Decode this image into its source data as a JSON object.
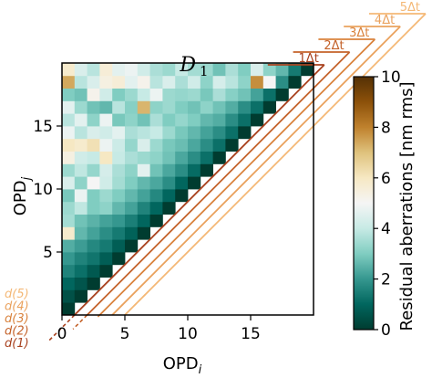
{
  "chart_data": {
    "type": "heatmap",
    "title": "D1",
    "xlabel": "OPDi",
    "ylabel": "OPDj",
    "x_ticks": [
      "0",
      "5",
      "10",
      "15"
    ],
    "y_ticks": [
      "5",
      "10",
      "15"
    ],
    "colorbar": {
      "label": "Residual aberrations [nm rms]",
      "min": 0,
      "max": 10,
      "ticks": [
        "0",
        "2",
        "4",
        "6",
        "8",
        "10"
      ],
      "colormap": [
        "#003c30",
        "#01665e",
        "#35978f",
        "#80cdc1",
        "#c7eae5",
        "#f5f5f5",
        "#f6e8c3",
        "#dfc27d",
        "#bf812d",
        "#8c510a",
        "#543005"
      ]
    },
    "dt_labels": [
      "5Δt",
      "4Δt",
      "3Δt",
      "2Δt",
      "1Δt"
    ],
    "d_labels": [
      "d(5)",
      "d(4)",
      "d(3)",
      "d(2)",
      "d(1)"
    ],
    "line_colors": [
      "#f4b876",
      "#eaa25e",
      "#d9823c",
      "#c4622a",
      "#a8411e"
    ],
    "matrix": [
      [
        0
      ],
      [
        0.5,
        0
      ],
      [
        1.0,
        0.6,
        0
      ],
      [
        1.6,
        1.2,
        0.7,
        0
      ],
      [
        2.0,
        1.6,
        1.3,
        0.8,
        0
      ],
      [
        2.4,
        2.1,
        1.7,
        1.4,
        0.8,
        0
      ],
      [
        5.8,
        2.6,
        2.2,
        1.8,
        1.4,
        0.9,
        0
      ],
      [
        3.5,
        2.8,
        2.5,
        2.2,
        2.0,
        1.5,
        1.0,
        0
      ],
      [
        3.4,
        3.9,
        3.0,
        3.2,
        2.6,
        2.2,
        1.6,
        1.0,
        0
      ],
      [
        2.9,
        4.8,
        3.0,
        3.4,
        3.0,
        2.6,
        2.2,
        1.7,
        1.0,
        0
      ],
      [
        4.4,
        3.2,
        5.0,
        4.2,
        3.5,
        3.0,
        2.6,
        2.3,
        1.8,
        1.0,
        0
      ],
      [
        3.4,
        3.9,
        3.3,
        4.3,
        3.6,
        3.2,
        4.6,
        2.8,
        2.3,
        1.8,
        1.1,
        0
      ],
      [
        5.4,
        4.2,
        4.0,
        6.0,
        4.0,
        3.6,
        3.4,
        3.2,
        2.8,
        2.3,
        1.8,
        1.2,
        0
      ],
      [
        6.0,
        5.8,
        6.2,
        4.8,
        4.1,
        3.3,
        4.4,
        3.4,
        2.9,
        2.7,
        2.3,
        1.8,
        1.2,
        0
      ],
      [
        4.8,
        3.8,
        4.4,
        4.2,
        4.6,
        3.6,
        3.8,
        4.0,
        3.4,
        2.9,
        2.6,
        2.2,
        1.8,
        1.2,
        0
      ],
      [
        3.8,
        4.6,
        3.2,
        4.8,
        2.9,
        3.2,
        2.8,
        3.6,
        3.0,
        3.3,
        3.0,
        2.6,
        2.4,
        1.8,
        1.2,
        0
      ],
      [
        4.6,
        3.4,
        2.8,
        2.6,
        3.8,
        3.1,
        7.2,
        3.2,
        3.4,
        3.0,
        2.8,
        3.2,
        2.8,
        2.4,
        1.8,
        1.2,
        0
      ],
      [
        3.0,
        2.8,
        5.2,
        4.2,
        3.0,
        3.4,
        4.0,
        4.8,
        3.4,
        3.3,
        3.4,
        2.9,
        3.6,
        3.1,
        2.8,
        2.2,
        1.2,
        0
      ],
      [
        7.4,
        3.8,
        4.4,
        5.4,
        5.6,
        4.6,
        5.2,
        3.8,
        4.4,
        3.6,
        4.2,
        3.2,
        4.3,
        3.8,
        3.2,
        7.8,
        5.0,
        1.8,
        0
      ],
      [
        5.8,
        4.4,
        3.8,
        5.6,
        4.6,
        4.8,
        4.2,
        3.6,
        3.4,
        4.0,
        3.5,
        3.4,
        2.8,
        3.6,
        3.0,
        4.4,
        3.2,
        2.6,
        1.4,
        0
      ]
    ]
  }
}
